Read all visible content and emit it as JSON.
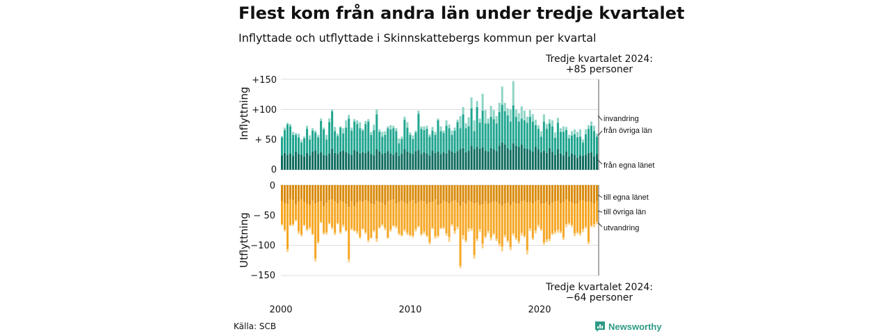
{
  "title": "Flest kom från andra län under tredje kvartalet",
  "subtitle": "Inflyttade och utflyttade i Skinnskattebergs kommun per kvartal",
  "source": "Källa: SCB",
  "brand": "Newsworthy",
  "annotations": {
    "top_line1": "Tredje kvartalet 2024:",
    "top_line2": "+85 personer",
    "bottom_line1": "Tredje kvartalet 2024:",
    "bottom_line2": "−64 personer"
  },
  "colors": {
    "in_own": "#0d6b5e",
    "in_other": "#1fa58f",
    "in_imm": "#8ed4c6",
    "out_own": "#d98a0b",
    "out_other": "#f5a623",
    "out_emig": "#fbd28a"
  },
  "chart_data": [
    {
      "type": "bar",
      "stacked": true,
      "ylabel": "Inflyttning",
      "ylim": [
        0,
        150
      ],
      "y_ticks": [
        "0",
        "+ 50",
        "+100",
        "+150"
      ],
      "x_ticks": [
        "2000",
        "2010",
        "2020"
      ],
      "grid": true,
      "series": [
        {
          "name": "från egna länet",
          "values": [
            24,
            28,
            25,
            27,
            23,
            30,
            26,
            25,
            22,
            28,
            24,
            30,
            32,
            26,
            29,
            25,
            24,
            27,
            35,
            28,
            26,
            30,
            32,
            29,
            27,
            25,
            33,
            30,
            27,
            29,
            28,
            31,
            26,
            24,
            34,
            30,
            26,
            28,
            31,
            27,
            25,
            29,
            23,
            27,
            34,
            30,
            28,
            26,
            31,
            33,
            26,
            29,
            27,
            24,
            32,
            28,
            30,
            26,
            29,
            27,
            33,
            30,
            28,
            31,
            34,
            36,
            29,
            32,
            40,
            34,
            38,
            35,
            37,
            32,
            30,
            36,
            34,
            31,
            40,
            45,
            42,
            36,
            33,
            44,
            40,
            38,
            42,
            36,
            35,
            33,
            30,
            38,
            34,
            29,
            32,
            28,
            36,
            30,
            25,
            34,
            27,
            24,
            30,
            22,
            27,
            25,
            20,
            24,
            23,
            25,
            28,
            29,
            22,
            26
          ]
        },
        {
          "name": "från övriga län",
          "values": [
            30,
            38,
            50,
            45,
            35,
            28,
            28,
            20,
            30,
            40,
            26,
            35,
            30,
            28,
            52,
            42,
            26,
            52,
            62,
            36,
            30,
            40,
            28,
            41,
            58,
            40,
            47,
            46,
            42,
            36,
            48,
            49,
            32,
            42,
            58,
            33,
            29,
            30,
            38,
            40,
            44,
            35,
            21,
            24,
            49,
            40,
            30,
            25,
            31,
            60,
            42,
            37,
            41,
            31,
            33,
            30,
            52,
            38,
            32,
            46,
            36,
            28,
            37,
            48,
            35,
            56,
            40,
            40,
            62,
            30,
            66,
            43,
            61,
            45,
            47,
            52,
            50,
            46,
            56,
            63,
            55,
            54,
            47,
            63,
            48,
            42,
            43,
            46,
            43,
            55,
            50,
            36,
            34,
            26,
            48,
            40,
            41,
            42,
            28,
            44,
            36,
            39,
            36,
            30,
            30,
            34,
            34,
            31,
            22,
            34,
            40,
            44,
            42,
            29
          ]
        },
        {
          "name": "invandring",
          "values": [
            2,
            4,
            3,
            4,
            5,
            3,
            6,
            4,
            3,
            5,
            7,
            4,
            3,
            4,
            4,
            3,
            8,
            6,
            3,
            7,
            4,
            2,
            9,
            12,
            6,
            5,
            4,
            6,
            10,
            3,
            5,
            4,
            5,
            9,
            8,
            4,
            8,
            6,
            3,
            7,
            4,
            5,
            8,
            4,
            5,
            9,
            4,
            6,
            3,
            5,
            4,
            6,
            5,
            4,
            6,
            5,
            3,
            8,
            4,
            9,
            6,
            7,
            5,
            4,
            20,
            12,
            8,
            15,
            18,
            18,
            10,
            7,
            28,
            22,
            8,
            18,
            15,
            12,
            15,
            30,
            14,
            12,
            20,
            40,
            12,
            14,
            20,
            16,
            10,
            11,
            12,
            9,
            6,
            9,
            12,
            8,
            7,
            10,
            9,
            8,
            6,
            9,
            5,
            6,
            7,
            8,
            9,
            12,
            5,
            8,
            6,
            7,
            9,
            5
          ]
        }
      ]
    },
    {
      "type": "bar",
      "stacked": true,
      "ylabel": "Utflyttning",
      "ylim": [
        -150,
        0
      ],
      "y_ticks": [
        "0",
        "− 50",
        "−100",
        "−150"
      ],
      "x_ticks": [
        "2000",
        "2010",
        "2020"
      ],
      "grid": true,
      "series": [
        {
          "name": "till egna länet",
          "values": [
            -27,
            -30,
            -31,
            -24,
            -25,
            -32,
            -27,
            -24,
            -28,
            -31,
            -33,
            -26,
            -30,
            -28,
            -27,
            -35,
            -29,
            -25,
            -24,
            -27,
            -30,
            -26,
            -28,
            -31,
            -36,
            -27,
            -34,
            -29,
            -26,
            -28,
            -25,
            -27,
            -30,
            -32,
            -26,
            -28,
            -29,
            -33,
            -27,
            -25,
            -24,
            -30,
            -28,
            -26,
            -29,
            -31,
            -27,
            -25,
            -30,
            -28,
            -26,
            -27,
            -31,
            -29,
            -28,
            -24,
            -33,
            -30,
            -26,
            -28,
            -30,
            -27,
            -25,
            -29,
            -34,
            -28,
            -31,
            -26,
            -28,
            -30,
            -29,
            -33,
            -32,
            -27,
            -30,
            -29,
            -27,
            -28,
            -31,
            -34,
            -30,
            -29,
            -33,
            -28,
            -30,
            -31,
            -27,
            -26,
            -29,
            -28,
            -30,
            -27,
            -25,
            -31,
            -30,
            -28,
            -33,
            -29,
            -27,
            -26,
            -30,
            -28,
            -24,
            -27,
            -29,
            -31,
            -30,
            -26,
            -25,
            -28,
            -27,
            -29,
            -30,
            -26
          ]
        },
        {
          "name": "till övriga län",
          "values": [
            -38,
            -44,
            -75,
            -42,
            -40,
            -26,
            -50,
            -58,
            -38,
            -42,
            -37,
            -55,
            -92,
            -66,
            -34,
            -44,
            -49,
            -38,
            -46,
            -52,
            -33,
            -52,
            -38,
            -44,
            -87,
            -45,
            -41,
            -48,
            -60,
            -44,
            -53,
            -64,
            -57,
            -43,
            -63,
            -42,
            -36,
            -38,
            -60,
            -49,
            -43,
            -38,
            -52,
            -57,
            -45,
            -48,
            -56,
            -59,
            -43,
            -40,
            -55,
            -50,
            -53,
            -66,
            -43,
            -61,
            -51,
            -41,
            -44,
            -52,
            -56,
            -38,
            -51,
            -40,
            -100,
            -55,
            -61,
            -46,
            -44,
            -86,
            -60,
            -40,
            -65,
            -58,
            -46,
            -58,
            -53,
            -61,
            -66,
            -68,
            -53,
            -63,
            -70,
            -52,
            -58,
            -62,
            -52,
            -58,
            -79,
            -44,
            -58,
            -48,
            -41,
            -42,
            -65,
            -62,
            -56,
            -51,
            -50,
            -48,
            -47,
            -59,
            -41,
            -36,
            -37,
            -49,
            -48,
            -54,
            -48,
            -41,
            -67,
            -38,
            -35,
            -35
          ]
        },
        {
          "name": "utvandring",
          "values": [
            -2,
            -3,
            -5,
            -2,
            -3,
            -2,
            -4,
            -3,
            -2,
            -3,
            -4,
            -2,
            -5,
            -3,
            -2,
            -3,
            -4,
            -2,
            -3,
            -4,
            -2,
            -3,
            -4,
            -2,
            -5,
            -3,
            -2,
            -4,
            -3,
            -2,
            -3,
            -4,
            -2,
            -3,
            -5,
            -2,
            -3,
            -4,
            -2,
            -3,
            -2,
            -4,
            -3,
            -2,
            -3,
            -4,
            -2,
            -3,
            -4,
            -2,
            -3,
            -4,
            -2,
            -3,
            -2,
            -4,
            -3,
            -2,
            -3,
            -4,
            -8,
            -3,
            -5,
            -4,
            -4,
            -7,
            -3,
            -6,
            -4,
            -6,
            -4,
            -5,
            -8,
            -3,
            -4,
            -5,
            -3,
            -4,
            -5,
            -8,
            -4,
            -3,
            -5,
            -4,
            -3,
            -4,
            -5,
            -3,
            -7,
            -4,
            -3,
            -5,
            -4,
            -3,
            -4,
            -5,
            -4,
            -3,
            -4,
            -5,
            -3,
            -4,
            -5,
            -3,
            -4,
            -5,
            -3,
            -4,
            -5,
            -3,
            -4,
            -3,
            -5,
            -4
          ]
        }
      ]
    }
  ]
}
